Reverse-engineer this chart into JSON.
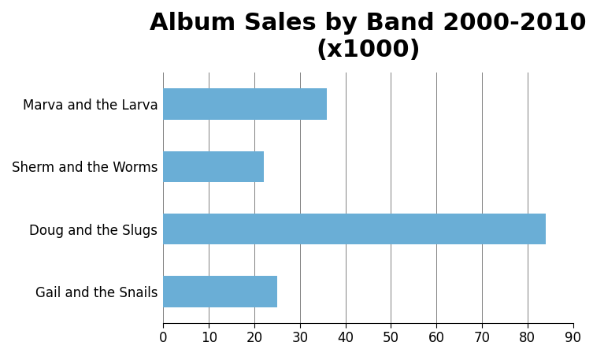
{
  "title": "Album Sales by Band 2000-2010\n(x1000)",
  "categories": [
    "Gail and the Snails",
    "Doug and the Slugs",
    "Sherm and the Worms",
    "Marva and the Larva"
  ],
  "values": [
    25,
    84,
    22,
    36
  ],
  "bar_color": "#6aaed6",
  "xlim": [
    0,
    90
  ],
  "xticks": [
    0,
    10,
    20,
    30,
    40,
    50,
    60,
    70,
    80,
    90
  ],
  "background_color": "#ffffff",
  "title_fontsize": 22,
  "tick_fontsize": 12,
  "label_fontsize": 12
}
